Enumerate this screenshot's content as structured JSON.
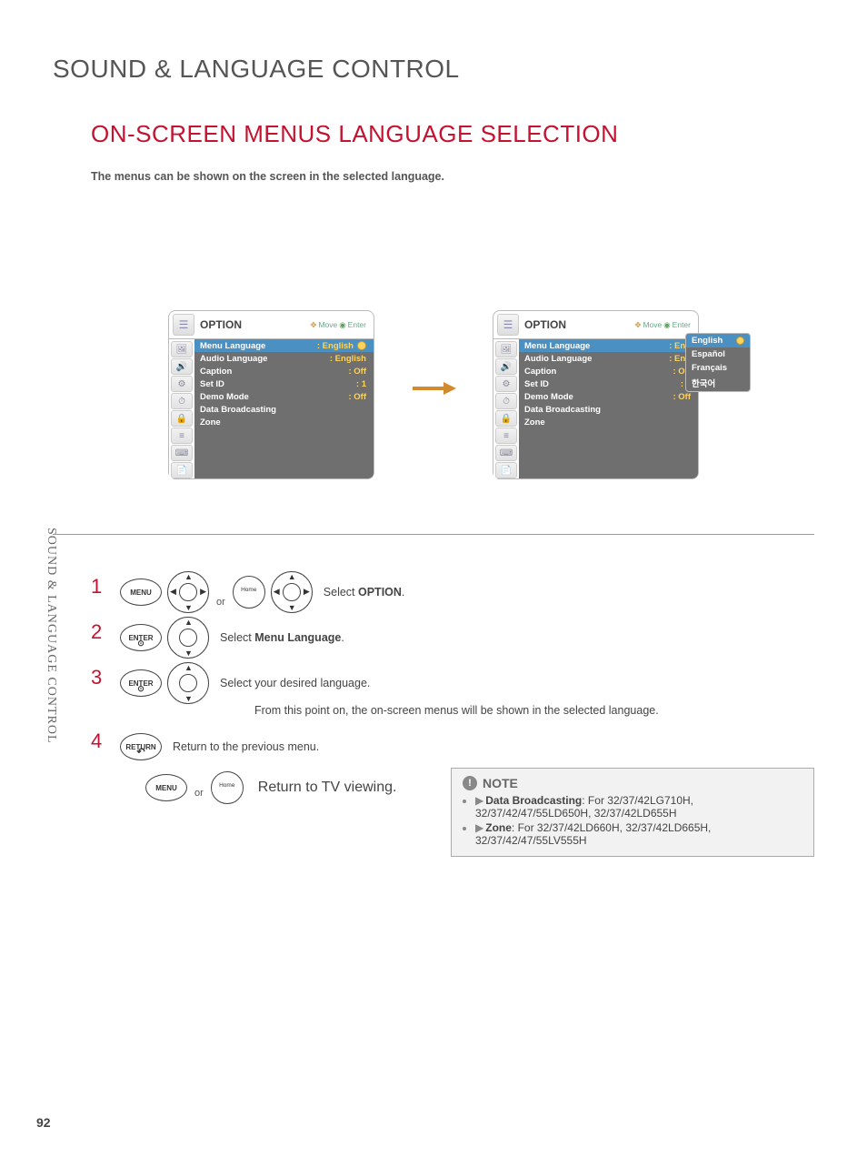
{
  "sidebar_label": "SOUND & LANGUAGE CONTROL",
  "section_title": "SOUND & LANGUAGE CONTROL",
  "page_title": "ON-SCREEN MENUS LANGUAGE SELECTION",
  "intro_text": "The menus can be shown on the screen in the selected language.",
  "page_number": "92",
  "colors": {
    "accent_red": "#c41230",
    "osd_bg": "#6f6f6f",
    "osd_highlight": "#4a90c2",
    "osd_value": "#ffd35a",
    "note_bg": "#f2f2f2"
  },
  "osd_left": {
    "title": "OPTION",
    "hint_move": "Move",
    "hint_enter": "Enter",
    "rows": [
      {
        "label": "Menu Language",
        "value": ": English",
        "selected": true,
        "dot": true
      },
      {
        "label": "Audio Language",
        "value": ": English"
      },
      {
        "label": "Caption",
        "value": ": Off"
      },
      {
        "label": "Set ID",
        "value": ": 1"
      },
      {
        "label": "Demo Mode",
        "value": ": Off"
      },
      {
        "label": "Data Broadcasting",
        "value": ""
      },
      {
        "label": "Zone",
        "value": ""
      }
    ]
  },
  "osd_right": {
    "title": "OPTION",
    "hint_move": "Move",
    "hint_enter": "Enter",
    "rows": [
      {
        "label": "Menu Language",
        "value": ": Eng",
        "selected": true
      },
      {
        "label": "Audio Language",
        "value": ": Eng"
      },
      {
        "label": "Caption",
        "value": ": Off"
      },
      {
        "label": "Set ID",
        "value": ": 1"
      },
      {
        "label": "Demo Mode",
        "value": ": Off"
      },
      {
        "label": "Data Broadcasting",
        "value": ""
      },
      {
        "label": "Zone",
        "value": ""
      }
    ],
    "popup": [
      {
        "label": "English",
        "selected": true
      },
      {
        "label": "Español"
      },
      {
        "label": "Français"
      },
      {
        "label": "한국어"
      }
    ]
  },
  "steps": {
    "s1": {
      "num": "1",
      "btn1": "MENU",
      "btn_home": "Home",
      "or": "or",
      "text_prefix": "Select ",
      "text_bold": "OPTION",
      "text_suffix": "."
    },
    "s2": {
      "num": "2",
      "btn1": "ENTER",
      "text_prefix": "Select ",
      "text_bold": "Menu Language",
      "text_suffix": "."
    },
    "s3": {
      "num": "3",
      "btn1": "ENTER",
      "text": "Select your desired language.",
      "extra": "From this point on, the on-screen menus will be shown in the selected language."
    },
    "s4": {
      "num": "4",
      "btn1": "RETURN",
      "text": "Return to the previous menu.",
      "menu": "MENU",
      "home": "Home",
      "or": "or",
      "text2": "Return to TV viewing."
    }
  },
  "note": {
    "title": "NOTE",
    "items": [
      {
        "bold": "Data Broadcasting",
        "rest": ": For 32/37/42LG710H, 32/37/42/47/55LD650H, 32/37/42LD655H"
      },
      {
        "bold": "Zone",
        "rest": ": For 32/37/42LD660H, 32/37/42LD665H, 32/37/42/47/55LV555H"
      }
    ]
  }
}
